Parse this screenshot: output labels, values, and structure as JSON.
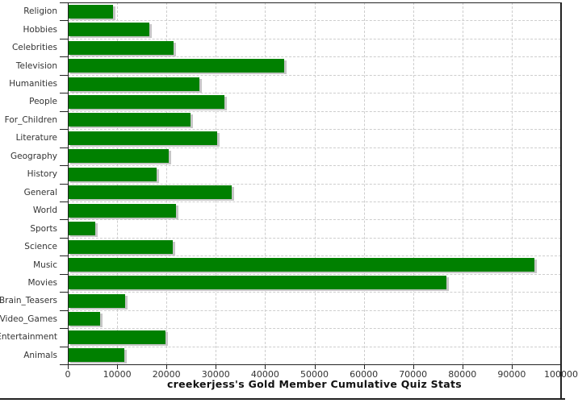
{
  "chart_data": {
    "type": "bar",
    "orientation": "horizontal",
    "title": "creekerjess's Gold Member Cumulative Quiz Stats",
    "categories": [
      "Religion",
      "Hobbies",
      "Celebrities",
      "Television",
      "Humanities",
      "People",
      "For_Children",
      "Literature",
      "Geography",
      "History",
      "General",
      "World",
      "Sports",
      "Science",
      "Music",
      "Movies",
      "Brain_Teasers",
      "Video_Games",
      "Entertainment",
      "Animals"
    ],
    "values": [
      9200,
      16600,
      21500,
      43800,
      26700,
      31800,
      24900,
      30300,
      20500,
      18000,
      33200,
      22000,
      5600,
      21300,
      94600,
      76800,
      11600,
      6500,
      19800,
      11500
    ],
    "xlim": [
      0,
      100000
    ],
    "xticks": [
      0,
      10000,
      20000,
      30000,
      40000,
      50000,
      60000,
      70000,
      80000,
      90000,
      100000
    ],
    "xtick_labels": [
      "0",
      "10000",
      "20000",
      "30000",
      "40000",
      "50000",
      "60000",
      "70000",
      "80000",
      "90000",
      "100000"
    ],
    "xlabel": "",
    "ylabel": "",
    "grid": "dashed",
    "legend": "none",
    "colors": {
      "bar": "#008000",
      "bar_shadow": "#c6c6c6",
      "grid": "#cdcdcd",
      "axis": "#222222",
      "tick_text": "#333333",
      "title_text": "#111111",
      "background": "#ffffff"
    }
  }
}
